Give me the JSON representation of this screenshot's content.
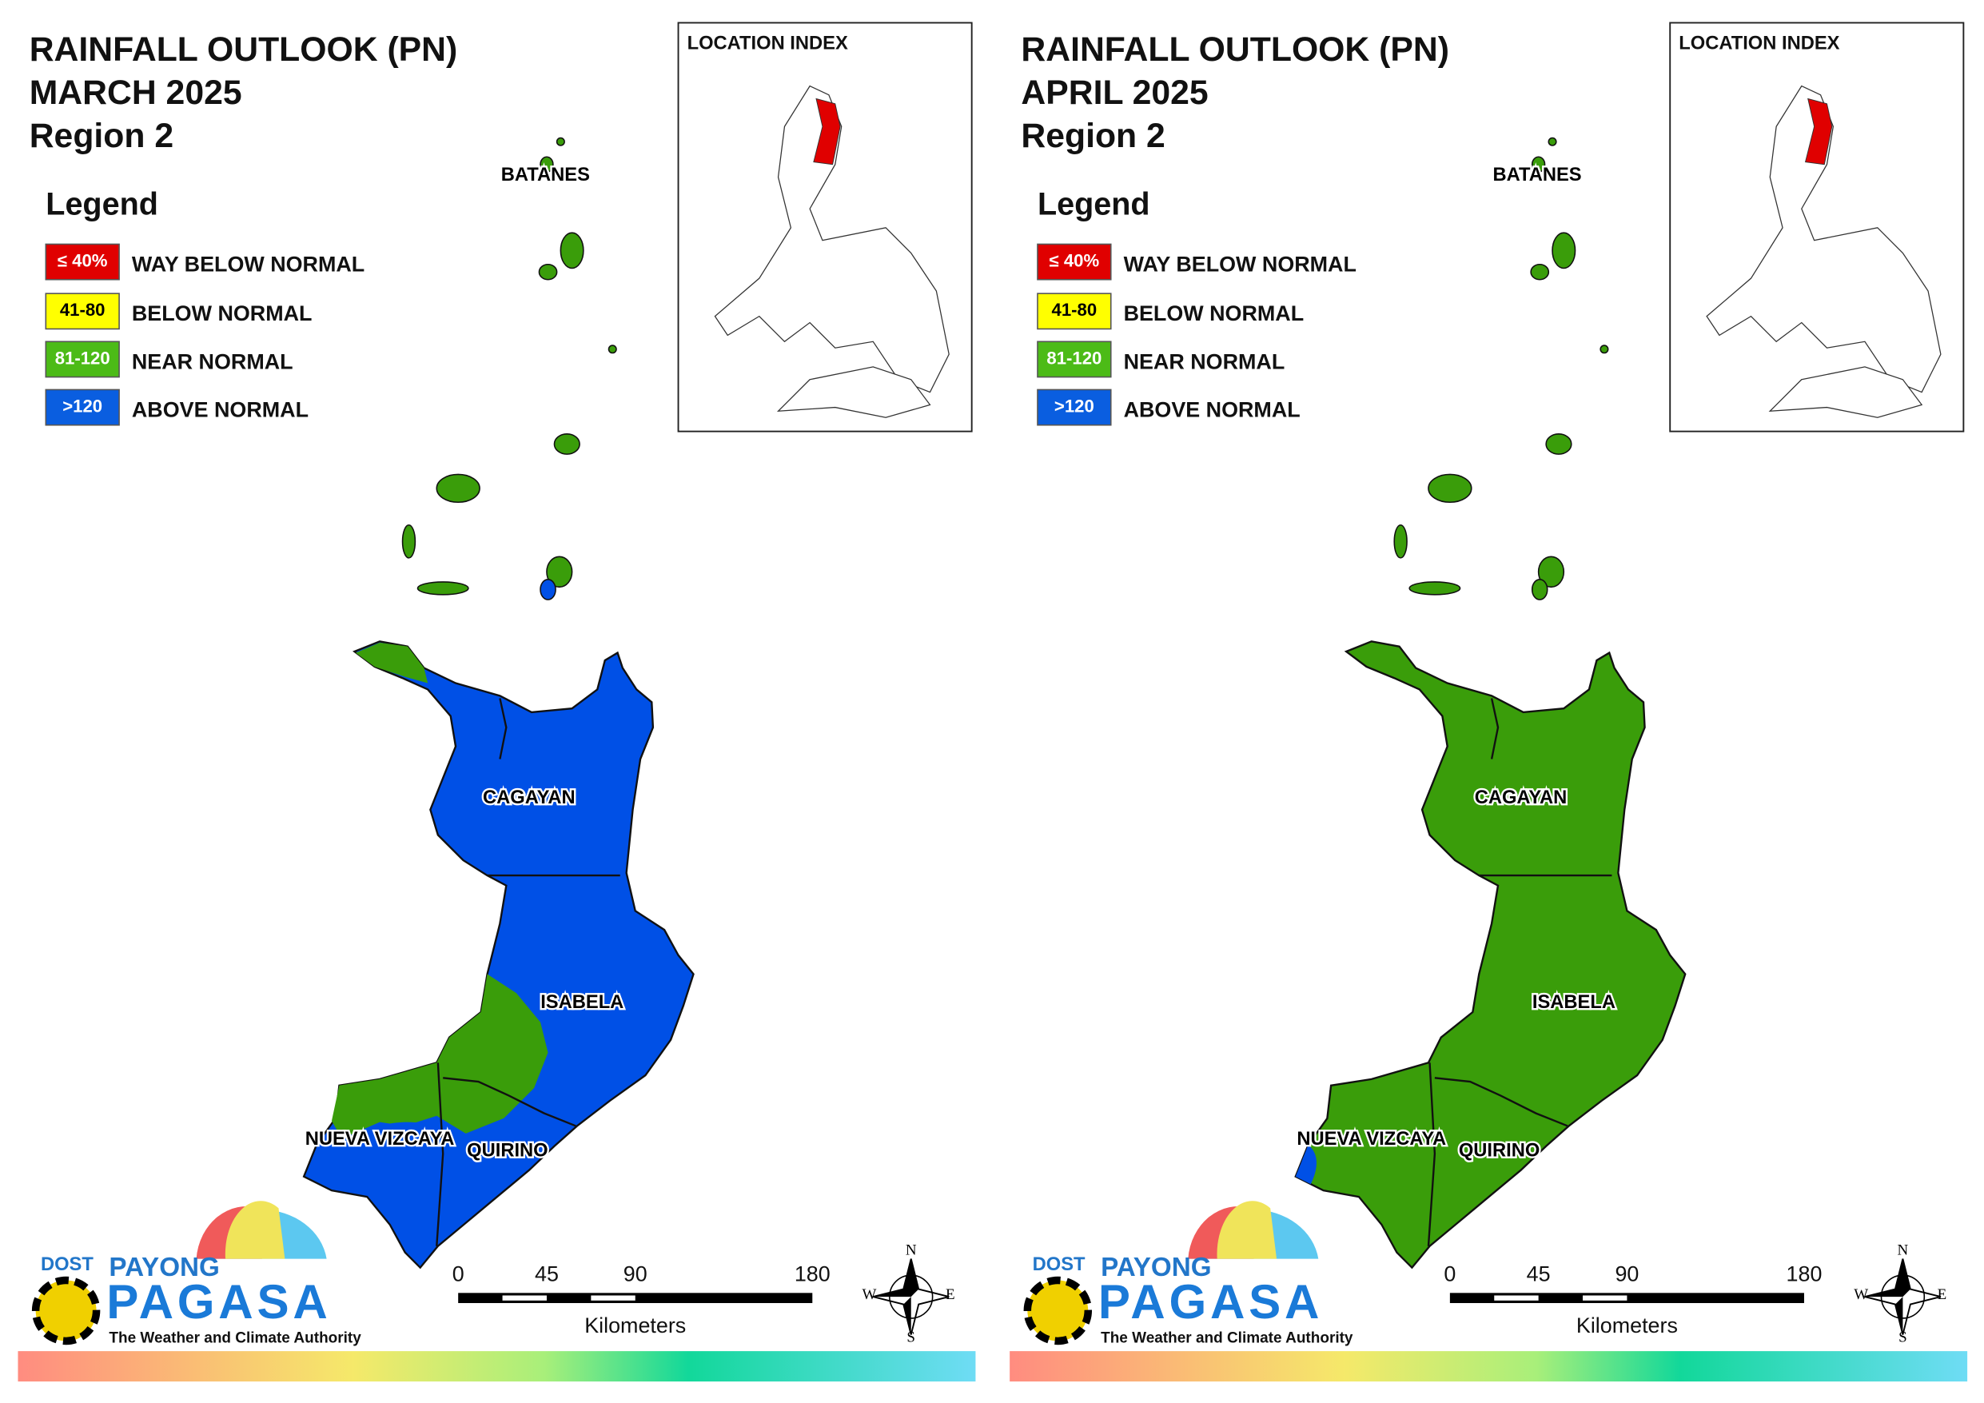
{
  "panels": [
    {
      "title_lines": [
        "RAINFALL OUTLOOK (PN)",
        "MARCH 2025",
        "Region 2"
      ],
      "legend_title": "Legend",
      "legend": [
        {
          "range": "≤ 40%",
          "label": "WAY BELOW NORMAL",
          "color": "#e00000"
        },
        {
          "range": "41-80",
          "label": "BELOW NORMAL",
          "color": "#ffff00"
        },
        {
          "range": "81-120",
          "label": "NEAR NORMAL",
          "color": "#4cbb17"
        },
        {
          "range": ">120",
          "label": "ABOVE NORMAL",
          "color": "#0a5ee0"
        }
      ],
      "location_index_title": "LOCATION INDEX",
      "provinces": [
        "BATANES",
        "CAGAYAN",
        "ISABELA",
        "NUEVA VIZCAYA",
        "QUIRINO"
      ],
      "base_color": "#0050e6",
      "patch_color": "#3a9d0a",
      "scale_ticks": [
        0,
        45,
        90,
        180
      ],
      "scale_unit": "Kilometers",
      "compass": [
        "N",
        "E",
        "S",
        "W"
      ],
      "logo": [
        "DOST",
        "PAYONG",
        "PAGASA",
        "The Weather and Climate Authority"
      ]
    },
    {
      "title_lines": [
        "RAINFALL OUTLOOK (PN)",
        "APRIL 2025",
        "Region 2"
      ],
      "legend_title": "Legend",
      "legend": [
        {
          "range": "≤ 40%",
          "label": "WAY BELOW NORMAL",
          "color": "#e00000"
        },
        {
          "range": "41-80",
          "label": "BELOW NORMAL",
          "color": "#ffff00"
        },
        {
          "range": "81-120",
          "label": "NEAR NORMAL",
          "color": "#4cbb17"
        },
        {
          "range": ">120",
          "label": "ABOVE NORMAL",
          "color": "#0a5ee0"
        }
      ],
      "location_index_title": "LOCATION INDEX",
      "provinces": [
        "BATANES",
        "CAGAYAN",
        "ISABELA",
        "NUEVA VIZCAYA",
        "QUIRINO"
      ],
      "base_color": "#3a9d0a",
      "patch_color": "#0050e6",
      "scale_ticks": [
        0,
        45,
        90,
        180
      ],
      "scale_unit": "Kilometers",
      "compass": [
        "N",
        "E",
        "S",
        "W"
      ],
      "logo": [
        "DOST",
        "PAYONG",
        "PAGASA",
        "The Weather and Climate Authority"
      ]
    }
  ]
}
